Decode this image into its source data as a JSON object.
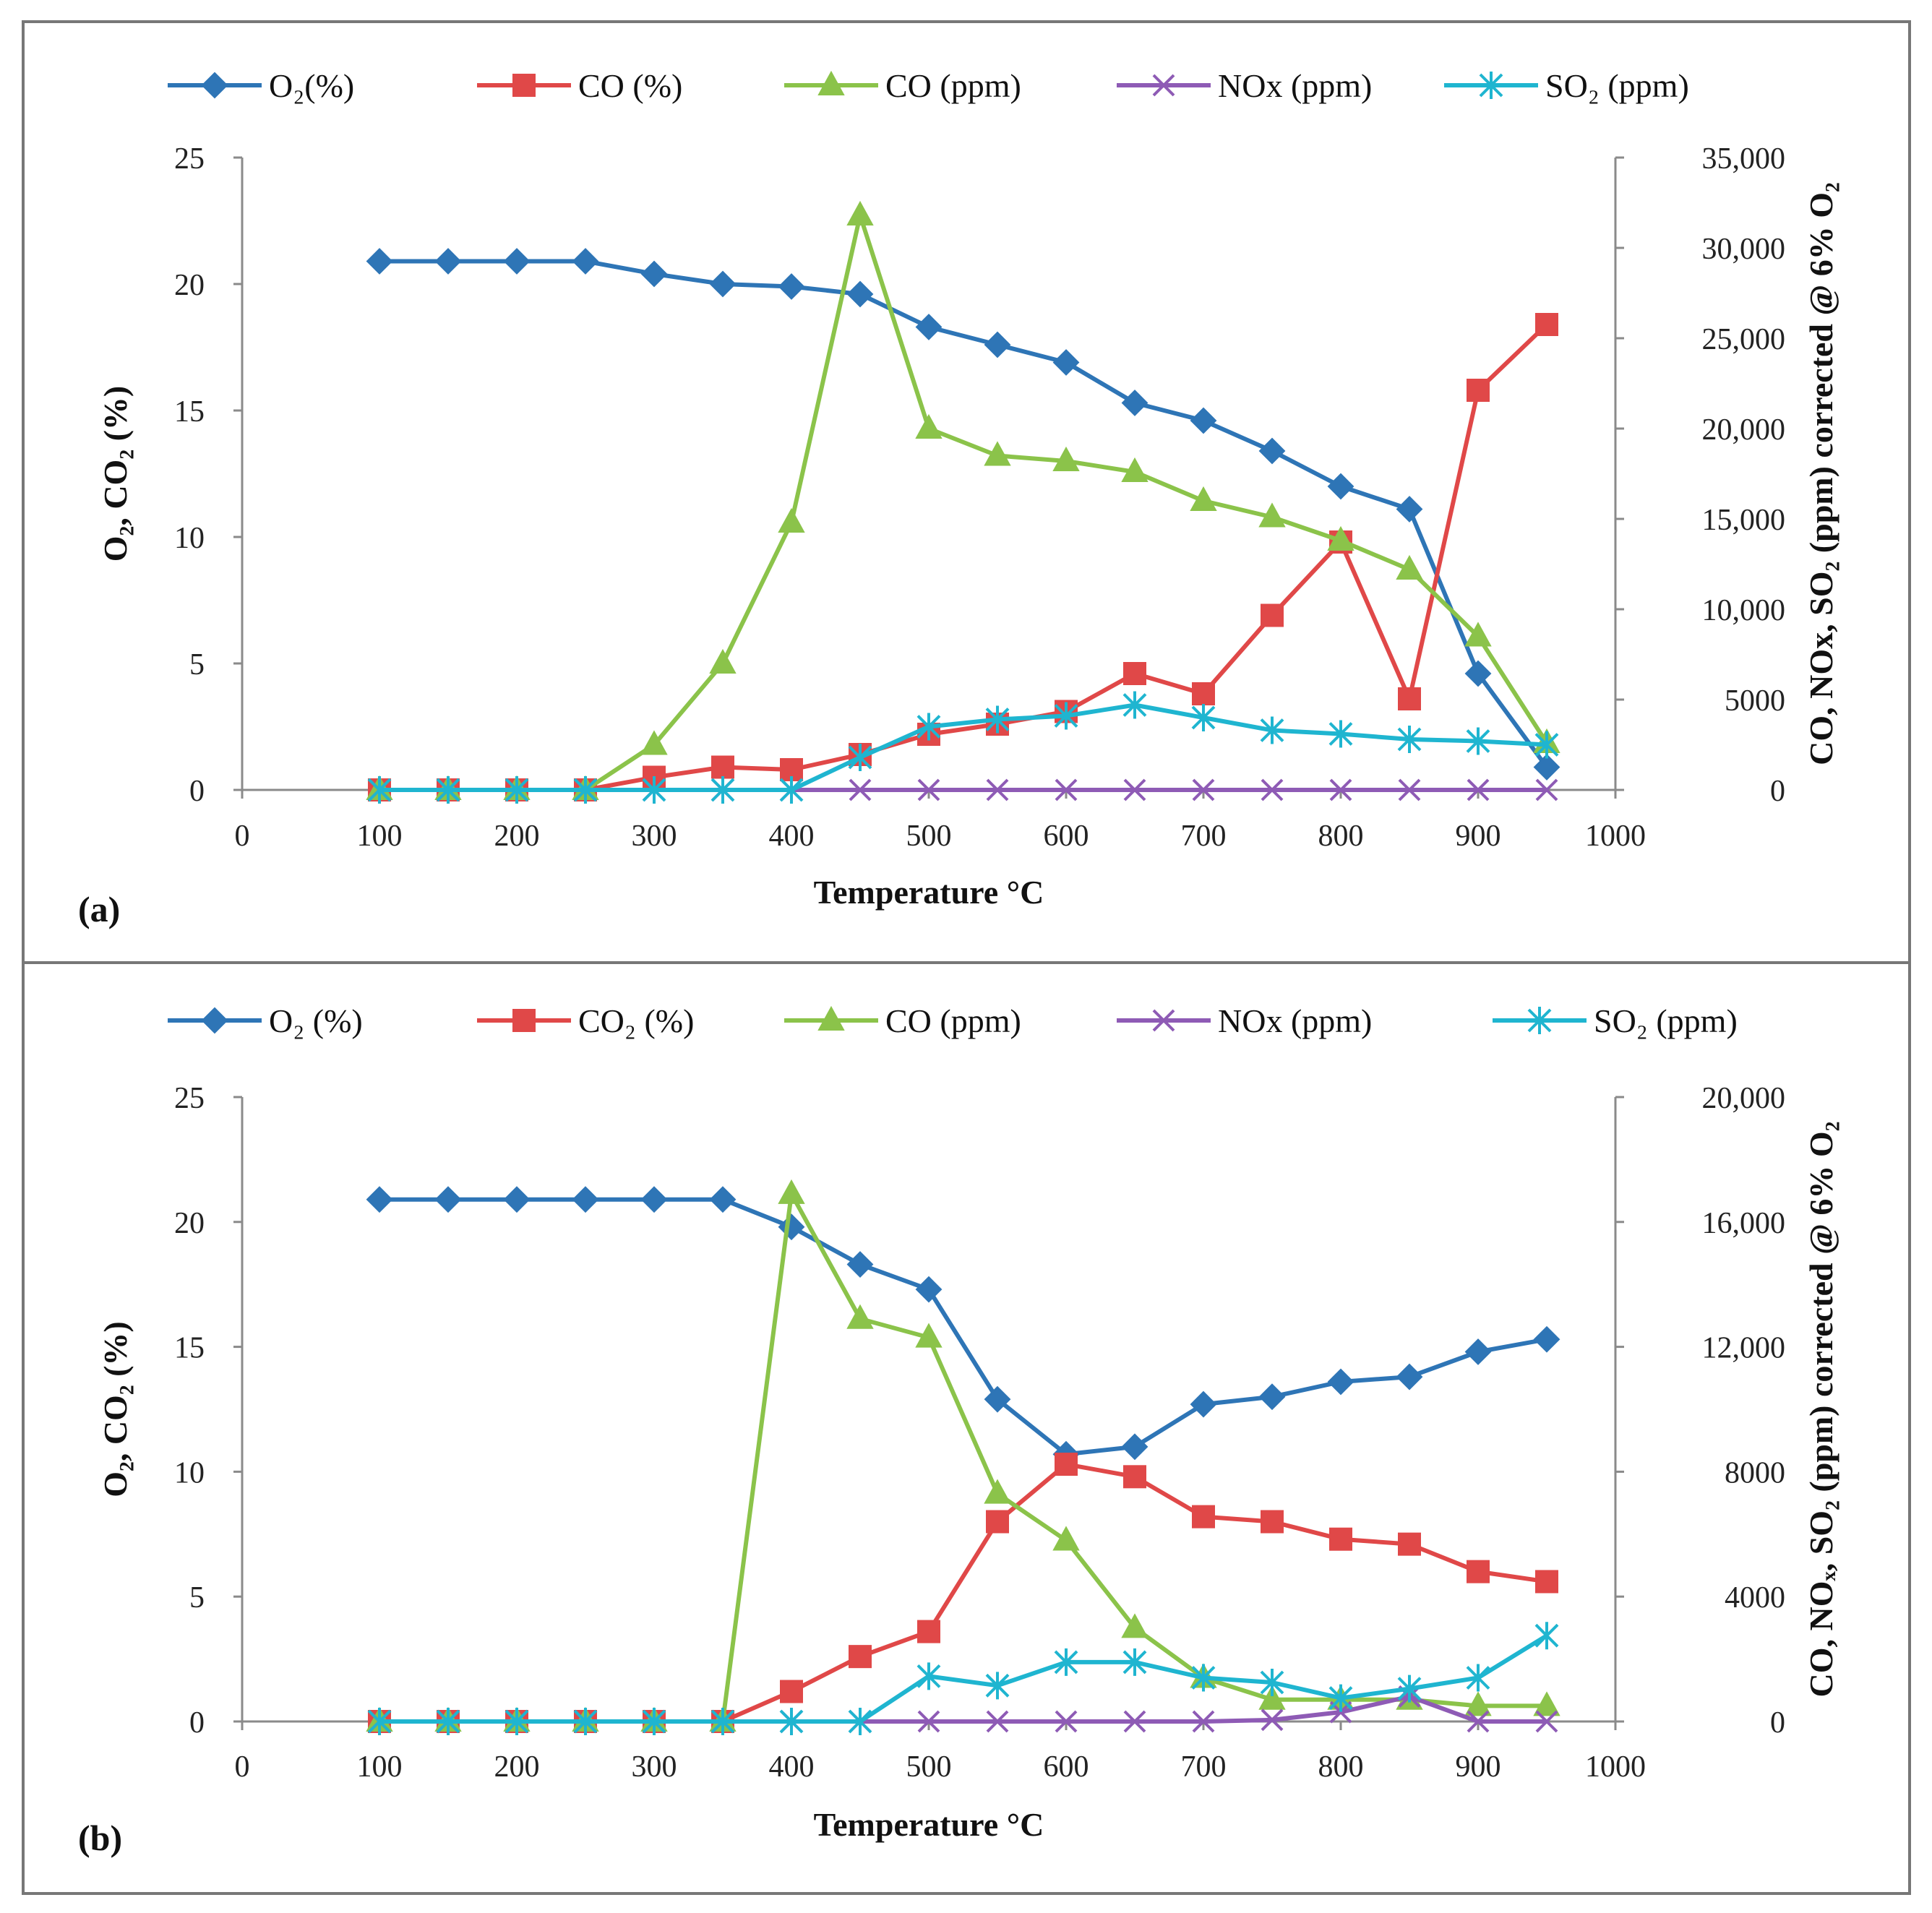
{
  "chart_data": [
    {
      "type": "line",
      "panel_label": "(a)",
      "xlabel": "Temperature °C",
      "ylabel_left": "O₂, CO₂ (%)",
      "ylabel_right": "CO, NOx, SO₂ (ppm) corrected @ 6% O₂",
      "xlim": [
        0,
        1000
      ],
      "x_ticks": [
        "0",
        "100",
        "200",
        "300",
        "400",
        "500",
        "600",
        "700",
        "800",
        "900",
        "1000"
      ],
      "ylim_left": [
        0,
        25
      ],
      "y_ticks_left": [
        "0",
        "5",
        "10",
        "15",
        "20",
        "25"
      ],
      "ylim_right": [
        0,
        35000
      ],
      "y_ticks_right": [
        "0",
        "5000",
        "10,000",
        "15,000",
        "20,000",
        "25,000",
        "30,000",
        "35,000"
      ],
      "legend": [
        "O₂(%)",
        "CO  (%)",
        "CO (ppm)",
        "NOx (ppm)",
        "SO₂  (ppm)"
      ],
      "x": [
        100,
        150,
        200,
        250,
        300,
        350,
        400,
        450,
        500,
        550,
        600,
        650,
        700,
        750,
        800,
        850,
        900,
        950
      ],
      "series": [
        {
          "name": "O₂(%)",
          "axis": "left",
          "color": "#2e75b6",
          "marker": "diamond",
          "values": [
            20.9,
            20.9,
            20.9,
            20.9,
            20.4,
            20.0,
            19.9,
            19.6,
            18.3,
            17.6,
            16.9,
            15.3,
            14.6,
            13.4,
            12.0,
            11.1,
            4.6,
            0.9
          ]
        },
        {
          "name": "CO  (%)",
          "axis": "left",
          "color": "#e04848",
          "marker": "square",
          "values": [
            0,
            0,
            0,
            0,
            0.5,
            0.9,
            0.8,
            1.4,
            2.2,
            2.6,
            3.1,
            4.6,
            3.8,
            6.9,
            9.8,
            3.6,
            15.8,
            18.4
          ]
        },
        {
          "name": "CO (ppm)",
          "axis": "right",
          "color": "#8bc34a",
          "marker": "triangle",
          "values": [
            0,
            0,
            0,
            0,
            2500,
            7000,
            14800,
            31800,
            20000,
            18500,
            18200,
            17600,
            16000,
            15100,
            13800,
            12200,
            8500,
            2600
          ]
        },
        {
          "name": "NOx (ppm)",
          "axis": "right",
          "color": "#8e5bb5",
          "marker": "x",
          "values": [
            0,
            0,
            0,
            0,
            0,
            0,
            0,
            0,
            0,
            0,
            0,
            0,
            0,
            0,
            0,
            0,
            0,
            0
          ]
        },
        {
          "name": "SO₂  (ppm)",
          "axis": "right",
          "color": "#1fb5d0",
          "marker": "star",
          "values": [
            0,
            0,
            0,
            0,
            0,
            0,
            0,
            1800,
            3500,
            3900,
            4100,
            4700,
            4000,
            3300,
            3100,
            2800,
            2700,
            2500
          ]
        }
      ]
    },
    {
      "type": "line",
      "panel_label": "(b)",
      "xlabel": "Temperature °C",
      "ylabel_left": "O₂, CO₂ (%)",
      "ylabel_right": "CO, NOₓ, SO₂ (ppm) corrected @ 6% O₂",
      "xlim": [
        0,
        1000
      ],
      "x_ticks": [
        "0",
        "100",
        "200",
        "300",
        "400",
        "500",
        "600",
        "700",
        "800",
        "900",
        "1000"
      ],
      "ylim_left": [
        0,
        25
      ],
      "y_ticks_left": [
        "0",
        "5",
        "10",
        "15",
        "20",
        "25"
      ],
      "ylim_right": [
        0,
        20000
      ],
      "y_ticks_right": [
        "0",
        "4000",
        "8000",
        "12,000",
        "16,000",
        "20,000"
      ],
      "legend": [
        "O₂ (%)",
        "CO₂ (%)",
        "CO (ppm)",
        "NOx (ppm)",
        "SO₂ (ppm)"
      ],
      "x": [
        100,
        150,
        200,
        250,
        300,
        350,
        400,
        450,
        500,
        550,
        600,
        650,
        700,
        750,
        800,
        850,
        900,
        950
      ],
      "series": [
        {
          "name": "O₂ (%)",
          "axis": "left",
          "color": "#2e75b6",
          "marker": "diamond",
          "values": [
            20.9,
            20.9,
            20.9,
            20.9,
            20.9,
            20.9,
            19.8,
            18.3,
            17.3,
            12.9,
            10.7,
            11.0,
            12.7,
            13.0,
            13.6,
            13.8,
            14.8,
            15.3
          ]
        },
        {
          "name": "CO₂ (%)",
          "axis": "left",
          "color": "#e04848",
          "marker": "square",
          "values": [
            0,
            0,
            0,
            0,
            0,
            0,
            1.2,
            2.6,
            3.6,
            8.0,
            10.3,
            9.8,
            8.2,
            8.0,
            7.3,
            7.1,
            6.0,
            5.6
          ]
        },
        {
          "name": "CO (ppm)",
          "axis": "right",
          "color": "#8bc34a",
          "marker": "triangle",
          "values": [
            0,
            0,
            0,
            0,
            0,
            0,
            16900,
            12900,
            12300,
            7300,
            5800,
            3000,
            1400,
            700,
            700,
            700,
            500,
            500
          ]
        },
        {
          "name": "NOx (ppm)",
          "axis": "right",
          "color": "#8e5bb5",
          "marker": "x",
          "values": [
            0,
            0,
            0,
            0,
            0,
            0,
            0,
            0,
            0,
            0,
            0,
            0,
            0,
            50,
            300,
            800,
            0,
            0
          ]
        },
        {
          "name": "SO₂ (ppm)",
          "axis": "right",
          "color": "#1fb5d0",
          "marker": "star",
          "values": [
            0,
            0,
            0,
            0,
            0,
            0,
            0,
            0,
            1450,
            1150,
            1900,
            1900,
            1400,
            1250,
            750,
            1050,
            1400,
            2750
          ]
        }
      ]
    }
  ]
}
